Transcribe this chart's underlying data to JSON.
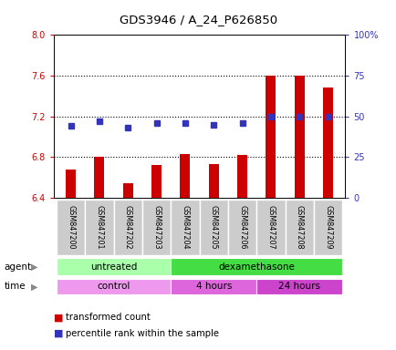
{
  "title": "GDS3946 / A_24_P626850",
  "samples": [
    "GSM847200",
    "GSM847201",
    "GSM847202",
    "GSM847203",
    "GSM847204",
    "GSM847205",
    "GSM847206",
    "GSM847207",
    "GSM847208",
    "GSM847209"
  ],
  "transformed_count": [
    6.68,
    6.8,
    6.54,
    6.72,
    6.83,
    6.73,
    6.82,
    7.6,
    7.6,
    7.48
  ],
  "percentile_rank": [
    44,
    47,
    43,
    46,
    46,
    45,
    46,
    50,
    50,
    50
  ],
  "ylim_left": [
    6.4,
    8.0
  ],
  "ylim_right": [
    0,
    100
  ],
  "yticks_left": [
    6.4,
    6.8,
    7.2,
    7.6,
    8.0
  ],
  "yticks_right": [
    0,
    25,
    50,
    75,
    100
  ],
  "ytick_labels_right": [
    "0",
    "25",
    "50",
    "75",
    "100%"
  ],
  "bar_color": "#cc0000",
  "dot_color": "#3333bb",
  "bar_width": 0.35,
  "agent_groups": [
    {
      "label": "untreated",
      "start": 0,
      "end": 3,
      "color": "#aaffaa"
    },
    {
      "label": "dexamethasone",
      "start": 4,
      "end": 9,
      "color": "#44dd44"
    }
  ],
  "time_groups": [
    {
      "label": "control",
      "start": 0,
      "end": 3,
      "color": "#ee99ee"
    },
    {
      "label": "4 hours",
      "start": 4,
      "end": 6,
      "color": "#dd66dd"
    },
    {
      "label": "24 hours",
      "start": 7,
      "end": 9,
      "color": "#cc44cc"
    }
  ],
  "legend_bar_label": "transformed count",
  "legend_dot_label": "percentile rank within the sample",
  "background_color": "#ffffff",
  "left_tick_color": "#cc0000",
  "right_tick_color": "#3333bb",
  "label_box_color": "#cccccc",
  "label_box_edge": "#ffffff"
}
